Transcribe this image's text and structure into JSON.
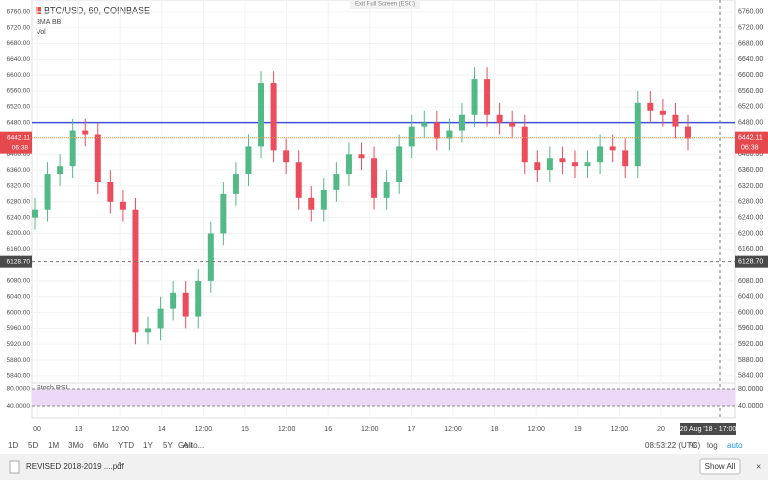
{
  "header": {
    "exit_fullscreen": "Exit Full Screen (ESC)",
    "symbol": "BTC/USD, 60, COINBASE",
    "indicators": [
      "3MA BB",
      "Vol"
    ]
  },
  "chart": {
    "type": "candlestick",
    "open": [
      6240,
      6260,
      6350,
      6370,
      6460,
      6450,
      6330,
      6280,
      6260,
      5950,
      5960,
      6010,
      6050,
      5990,
      6080,
      6200,
      6300,
      6350,
      6420,
      6580,
      6410,
      6380,
      6290,
      6260,
      6310,
      6350,
      6400,
      6390,
      6290,
      6330,
      6420,
      6470,
      6480,
      6440,
      6460,
      6500,
      6590,
      6500,
      6480,
      6470,
      6380,
      6360,
      6390,
      6380,
      6370,
      6380,
      6420,
      6410,
      6370,
      6530,
      6510,
      6500,
      6470
    ],
    "high": [
      6290,
      6380,
      6400,
      6490,
      6490,
      6480,
      6360,
      6310,
      6290,
      5990,
      6040,
      6080,
      6080,
      6110,
      6230,
      6330,
      6380,
      6450,
      6610,
      6610,
      6440,
      6410,
      6320,
      6340,
      6380,
      6430,
      6430,
      6420,
      6360,
      6450,
      6500,
      6510,
      6510,
      6490,
      6530,
      6620,
      6620,
      6530,
      6510,
      6500,
      6410,
      6420,
      6420,
      6410,
      6410,
      6450,
      6450,
      6440,
      6560,
      6560,
      6540,
      6530,
      6500
    ],
    "low": [
      6210,
      6230,
      6320,
      6340,
      6420,
      6300,
      6250,
      6230,
      5920,
      5920,
      5930,
      5980,
      5960,
      5960,
      6050,
      6170,
      6270,
      6320,
      6390,
      6380,
      6350,
      6260,
      6230,
      6230,
      6280,
      6320,
      6360,
      6260,
      6260,
      6300,
      6390,
      6440,
      6410,
      6410,
      6430,
      6470,
      6470,
      6450,
      6440,
      6350,
      6330,
      6330,
      6350,
      6340,
      6340,
      6350,
      6380,
      6340,
      6340,
      6480,
      6470,
      6440,
      6410
    ],
    "close": [
      6260,
      6350,
      6370,
      6460,
      6450,
      6330,
      6280,
      6260,
      5950,
      5960,
      6010,
      6050,
      5990,
      6080,
      6200,
      6300,
      6350,
      6420,
      6580,
      6410,
      6380,
      6290,
      6260,
      6310,
      6350,
      6400,
      6390,
      6290,
      6330,
      6420,
      6470,
      6480,
      6440,
      6460,
      6500,
      6590,
      6500,
      6480,
      6470,
      6380,
      6360,
      6390,
      6380,
      6370,
      6380,
      6420,
      6410,
      6370,
      6530,
      6510,
      6500,
      6470,
      6440
    ],
    "colors": {
      "up": "#53b987",
      "down": "#eb4d5c"
    },
    "ylim": [
      5822,
      6790
    ],
    "yticks": [
      {
        "value": 6760,
        "label": "6760.00"
      },
      {
        "value": 6720,
        "label": "6720.00"
      },
      {
        "value": 6680,
        "label": "6680.00"
      },
      {
        "value": 6640,
        "label": "6640.00"
      },
      {
        "value": 6600,
        "label": "6600.00"
      },
      {
        "value": 6560,
        "label": "6560.00"
      },
      {
        "value": 6520,
        "label": "6520.00"
      },
      {
        "value": 6480,
        "label": "6480.00"
      },
      {
        "value": 6440,
        "label": "6440.00"
      },
      {
        "value": 6400,
        "label": "6400.00"
      },
      {
        "value": 6360,
        "label": "6360.00"
      },
      {
        "value": 6320,
        "label": "6320.00"
      },
      {
        "value": 6280,
        "label": "6280.00"
      },
      {
        "value": 6240,
        "label": "6240.00"
      },
      {
        "value": 6200,
        "label": "6200.00"
      },
      {
        "value": 6160,
        "label": "6160.00"
      },
      {
        "value": 6120,
        "label": "6120.00"
      },
      {
        "value": 6080,
        "label": "6080.00"
      },
      {
        "value": 6040,
        "label": "6040.00"
      },
      {
        "value": 6000,
        "label": "6000.00"
      },
      {
        "value": 5960,
        "label": "5960.00"
      },
      {
        "value": 5920,
        "label": "5920.00"
      },
      {
        "value": 5880,
        "label": "5880.00"
      },
      {
        "value": 5840,
        "label": "5840.00"
      }
    ],
    "level_line": 6480,
    "last_price": {
      "value": 6442.11,
      "label": "6442.11"
    },
    "countdown": "06:38",
    "crosshair": {
      "value": 6128.7,
      "label": "6128.70"
    },
    "xticks": [
      "00",
      "13",
      "12:00",
      "14",
      "12:00",
      "15",
      "12:00",
      "16",
      "12:00",
      "17",
      "12:00",
      "18",
      "12:00",
      "19",
      "12:00",
      "20"
    ],
    "crosshair_time": "20 Aug '18 - 17:00"
  },
  "stoch_rsi": {
    "title": "Stoch RSI",
    "ylim": [
      12,
      94
    ],
    "yticks": [
      {
        "value": 80,
        "label": "80.0000"
      },
      {
        "value": 40,
        "label": "40.0000"
      }
    ]
  },
  "toolbar": {
    "ranges": [
      "1D",
      "5D",
      "1M",
      "3Mo",
      "6Mo",
      "YTD",
      "1Y",
      "5Y",
      "All"
    ],
    "goto": "Go to...",
    "clock": "08:53:22 (UTC)",
    "percent": "%",
    "log": "log",
    "auto": "auto"
  },
  "downloads": {
    "file": "REVISED 2018-2019 ....pdf",
    "show_all": "Show All"
  }
}
